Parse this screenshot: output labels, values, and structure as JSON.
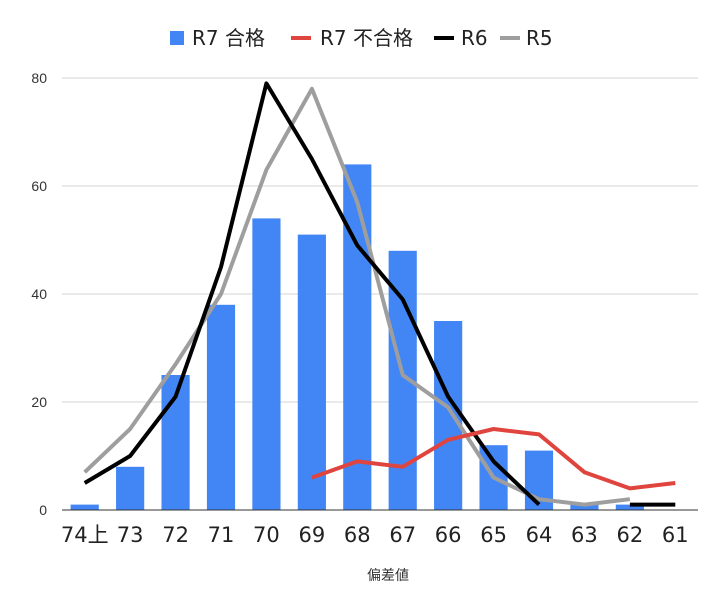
{
  "chart_data": {
    "type": "bar",
    "categories": [
      "74上",
      "73",
      "72",
      "71",
      "70",
      "69",
      "68",
      "67",
      "66",
      "65",
      "64",
      "63",
      "62",
      "61"
    ],
    "xlabel": "偏差値",
    "ylabel": "",
    "ylim": [
      0,
      80
    ],
    "yticks": [
      0,
      20,
      40,
      60,
      80
    ],
    "grid": true,
    "legend_position": "top",
    "series": [
      {
        "name": "R7 合格",
        "kind": "bar",
        "color": "#4285f4",
        "values": [
          1,
          8,
          25,
          38,
          54,
          51,
          64,
          48,
          35,
          12,
          11,
          1,
          1,
          null
        ]
      },
      {
        "name": "R7 不合格",
        "kind": "line",
        "color": "#e0443e",
        "values": [
          null,
          null,
          null,
          null,
          null,
          6,
          9,
          8,
          13,
          15,
          14,
          7,
          4,
          5
        ]
      },
      {
        "name": "R6",
        "kind": "line",
        "color": "#000000",
        "values": [
          5,
          10,
          21,
          45,
          79,
          65,
          49,
          39,
          21,
          9,
          1,
          null,
          1,
          1
        ]
      },
      {
        "name": "R5",
        "kind": "line",
        "color": "#9e9e9e",
        "values": [
          7,
          15,
          27,
          40,
          63,
          78,
          57,
          25,
          19,
          6,
          2,
          1,
          2,
          null
        ]
      }
    ]
  }
}
